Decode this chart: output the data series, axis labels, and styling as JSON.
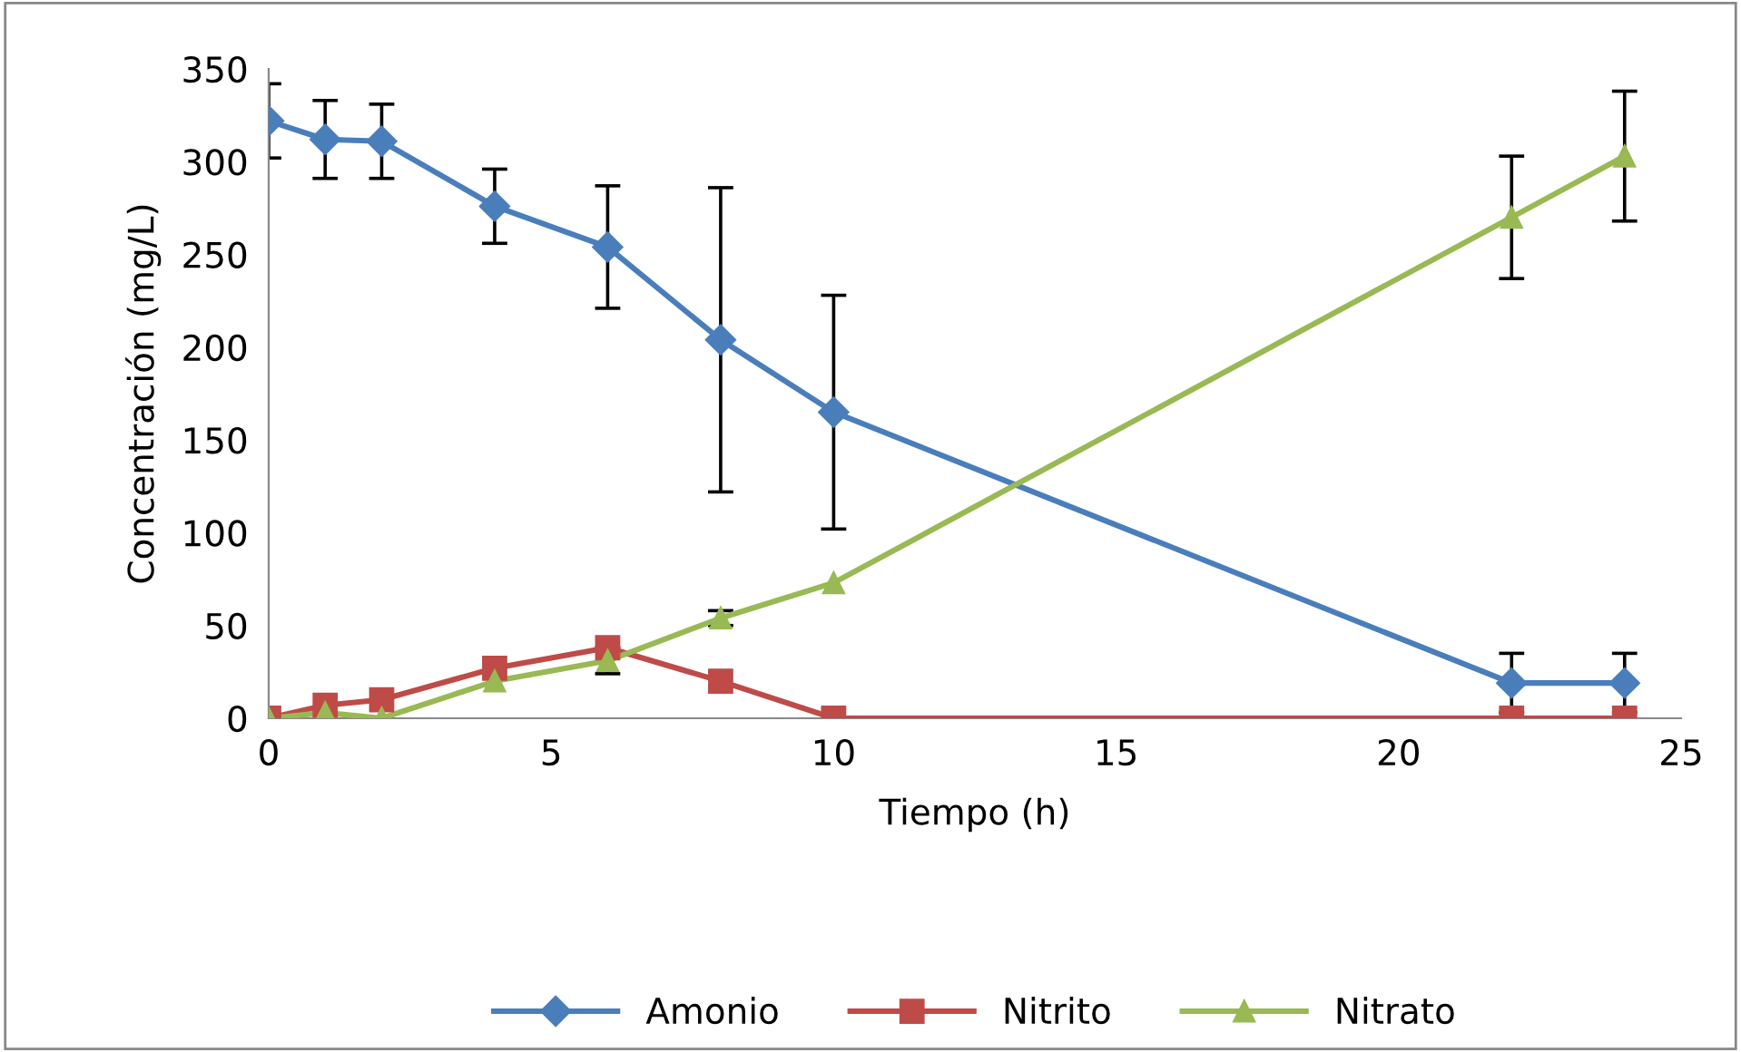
{
  "chart_data": {
    "type": "line",
    "xlabel": "Tiempo (h)",
    "ylabel": "Concentración (mg/L)",
    "x": [
      0,
      1,
      2,
      4,
      6,
      8,
      10,
      22,
      24
    ],
    "series": [
      {
        "name": "Amonio",
        "color": "#4a7ebb",
        "marker": "diamond",
        "values": [
          322,
          312,
          311,
          276,
          254,
          204,
          165,
          19,
          19
        ],
        "errors": [
          20,
          21,
          20,
          20,
          33,
          82,
          63,
          16,
          16
        ]
      },
      {
        "name": "Nitrito",
        "color": "#be4b48",
        "marker": "square",
        "values": [
          0,
          7,
          10,
          27,
          38,
          20,
          0,
          0,
          0
        ]
      },
      {
        "name": "Nitrato",
        "color": "#98b954",
        "marker": "triangle",
        "values": [
          0,
          3,
          0,
          20,
          31,
          54,
          73,
          270,
          303
        ],
        "errors": [
          null,
          null,
          null,
          null,
          7,
          4,
          null,
          33,
          35
        ]
      }
    ],
    "xlim": [
      0,
      25
    ],
    "xticks": [
      0,
      5,
      10,
      15,
      20,
      25
    ],
    "ylim": [
      0,
      350
    ],
    "yticks": [
      0,
      50,
      100,
      150,
      200,
      250,
      300,
      350
    ],
    "grid": false,
    "legend": "bottom",
    "line_style": "solid"
  }
}
